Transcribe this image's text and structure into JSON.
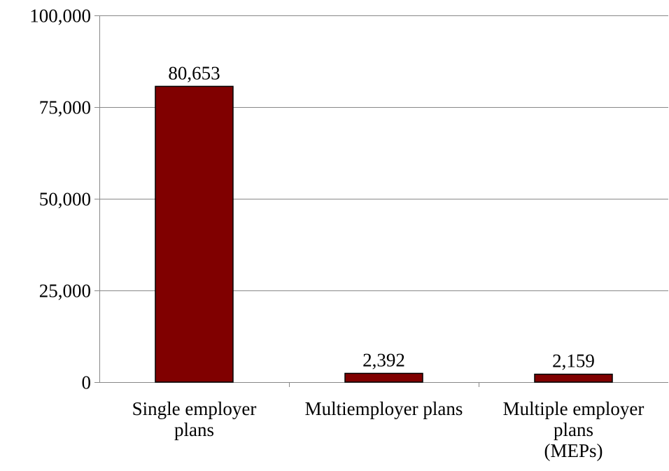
{
  "chart_data": {
    "type": "bar",
    "categories": [
      [
        "Single employer",
        "plans"
      ],
      [
        "Multiemployer plans"
      ],
      [
        "Multiple employer",
        "plans",
        "(MEPs)"
      ]
    ],
    "values": [
      80653,
      2392,
      2159
    ],
    "data_labels": [
      "80,653",
      "2,392",
      "2,159"
    ],
    "y_ticks": [
      0,
      25000,
      50000,
      75000,
      100000
    ],
    "y_tick_labels": [
      "0",
      "25,000",
      "50,000",
      "75,000",
      "100,000"
    ],
    "ylim": [
      0,
      100000
    ],
    "grid": true,
    "legend": "none",
    "bar_color": "#800000",
    "bar_edge_color": "#000000",
    "gridline_color": "#888888"
  }
}
